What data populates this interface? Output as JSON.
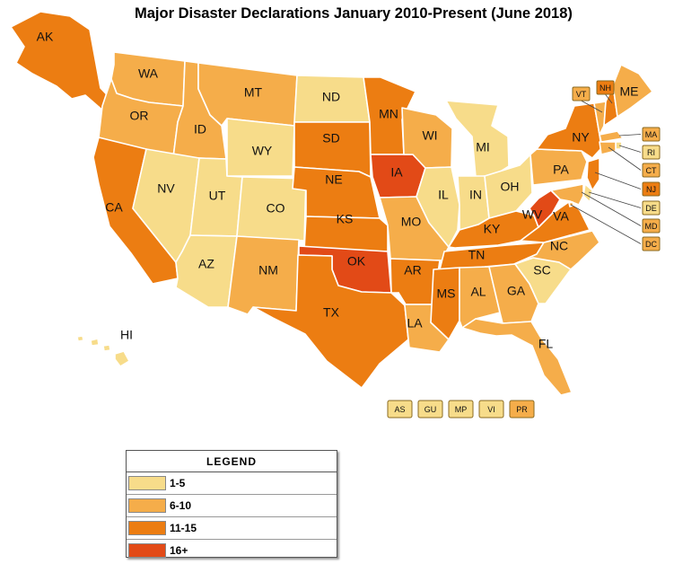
{
  "title": "Major Disaster Declarations January 2010-Present (June 2018)",
  "colors": {
    "1-5": "#f7dc8a",
    "6-10": "#f5ad4a",
    "11-15": "#ec7d12",
    "16+": "#e24a17"
  },
  "legend": {
    "title": "LEGEND",
    "items": [
      {
        "label": "1-5",
        "category": "1-5"
      },
      {
        "label": "6-10",
        "category": "6-10"
      },
      {
        "label": "11-15",
        "category": "11-15"
      },
      {
        "label": "16+",
        "category": "16+"
      }
    ]
  },
  "states": [
    {
      "code": "AK",
      "category": "11-15"
    },
    {
      "code": "HI",
      "category": "1-5"
    },
    {
      "code": "WA",
      "category": "6-10"
    },
    {
      "code": "OR",
      "category": "6-10"
    },
    {
      "code": "CA",
      "category": "11-15"
    },
    {
      "code": "ID",
      "category": "6-10"
    },
    {
      "code": "NV",
      "category": "1-5"
    },
    {
      "code": "UT",
      "category": "1-5"
    },
    {
      "code": "AZ",
      "category": "1-5"
    },
    {
      "code": "MT",
      "category": "6-10"
    },
    {
      "code": "WY",
      "category": "1-5"
    },
    {
      "code": "CO",
      "category": "1-5"
    },
    {
      "code": "NM",
      "category": "6-10"
    },
    {
      "code": "ND",
      "category": "1-5"
    },
    {
      "code": "SD",
      "category": "11-15"
    },
    {
      "code": "NE",
      "category": "11-15"
    },
    {
      "code": "KS",
      "category": "11-15"
    },
    {
      "code": "OK",
      "category": "16+"
    },
    {
      "code": "TX",
      "category": "11-15"
    },
    {
      "code": "MN",
      "category": "11-15"
    },
    {
      "code": "IA",
      "category": "16+"
    },
    {
      "code": "MO",
      "category": "6-10"
    },
    {
      "code": "AR",
      "category": "11-15"
    },
    {
      "code": "LA",
      "category": "6-10"
    },
    {
      "code": "WI",
      "category": "6-10"
    },
    {
      "code": "IL",
      "category": "1-5"
    },
    {
      "code": "MI",
      "category": "1-5"
    },
    {
      "code": "IN",
      "category": "1-5"
    },
    {
      "code": "OH",
      "category": "1-5"
    },
    {
      "code": "KY",
      "category": "11-15"
    },
    {
      "code": "TN",
      "category": "11-15"
    },
    {
      "code": "MS",
      "category": "11-15"
    },
    {
      "code": "AL",
      "category": "6-10"
    },
    {
      "code": "GA",
      "category": "6-10"
    },
    {
      "code": "FL",
      "category": "6-10"
    },
    {
      "code": "SC",
      "category": "1-5"
    },
    {
      "code": "NC",
      "category": "6-10"
    },
    {
      "code": "VA",
      "category": "11-15"
    },
    {
      "code": "WV",
      "category": "16+"
    },
    {
      "code": "PA",
      "category": "6-10"
    },
    {
      "code": "NY",
      "category": "11-15"
    },
    {
      "code": "VT",
      "category": "6-10"
    },
    {
      "code": "NH",
      "category": "11-15"
    },
    {
      "code": "ME",
      "category": "6-10"
    }
  ],
  "callouts": [
    {
      "code": "VT",
      "category": "6-10"
    },
    {
      "code": "NH",
      "category": "11-15"
    },
    {
      "code": "MA",
      "category": "6-10"
    },
    {
      "code": "RI",
      "category": "1-5"
    },
    {
      "code": "CT",
      "category": "6-10"
    },
    {
      "code": "NJ",
      "category": "11-15"
    },
    {
      "code": "DE",
      "category": "1-5"
    },
    {
      "code": "MD",
      "category": "6-10"
    },
    {
      "code": "DC",
      "category": "6-10"
    }
  ],
  "territories": [
    {
      "code": "AS",
      "category": "1-5"
    },
    {
      "code": "GU",
      "category": "1-5"
    },
    {
      "code": "MP",
      "category": "1-5"
    },
    {
      "code": "VI",
      "category": "1-5"
    },
    {
      "code": "PR",
      "category": "6-10"
    }
  ]
}
